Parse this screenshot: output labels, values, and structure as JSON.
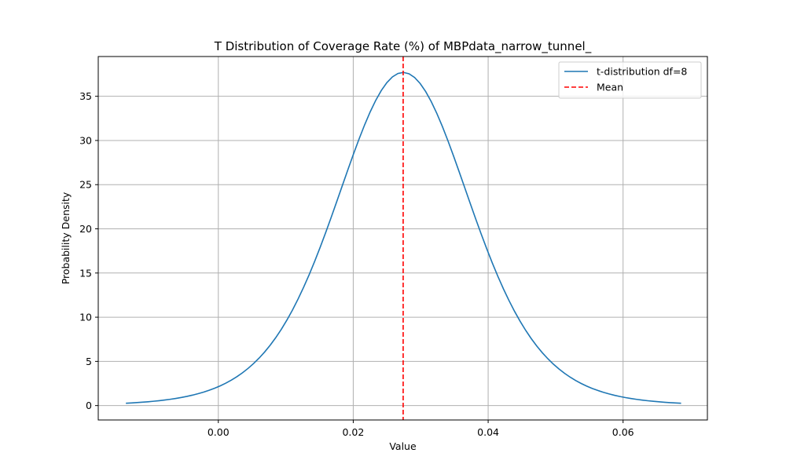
{
  "chart_data": {
    "type": "line",
    "title": "T Distribution of Coverage Rate (%) of MBPdata_narrow_tunnel_",
    "xlabel": "Value",
    "ylabel": "Probability Density",
    "xlim": [
      -0.0178,
      0.0725
    ],
    "ylim": [
      -1.63,
      39.5
    ],
    "xticks": [
      0.0,
      0.02,
      0.04,
      0.06
    ],
    "xtick_labels": [
      "0.00",
      "0.02",
      "0.04",
      "0.06"
    ],
    "yticks": [
      0,
      5,
      10,
      15,
      20,
      25,
      30,
      35
    ],
    "ytick_labels": [
      "0",
      "5",
      "10",
      "15",
      "20",
      "25",
      "30",
      "35"
    ],
    "grid": true,
    "legend_position": "top-right",
    "distribution": {
      "df": 8,
      "mean": 0.0274,
      "peak_density": 37.7
    },
    "series": [
      {
        "name": "t-distribution df=8",
        "color": "#1f77b4",
        "style": "solid",
        "x": [
          -0.0137,
          -0.01,
          -0.005,
          0.0,
          0.005,
          0.01,
          0.015,
          0.02,
          0.0274,
          0.035,
          0.04,
          0.045,
          0.05,
          0.055,
          0.06,
          0.065,
          0.0686
        ],
        "y": [
          0.3,
          0.55,
          1.1,
          2.2,
          4.7,
          10.2,
          18.7,
          28.7,
          37.7,
          29.9,
          17.3,
          9.4,
          4.9,
          2.5,
          1.1,
          0.5,
          0.3
        ]
      },
      {
        "name": "Mean",
        "color": "#ff0000",
        "style": "dashed",
        "x_value": 0.0274
      }
    ]
  }
}
